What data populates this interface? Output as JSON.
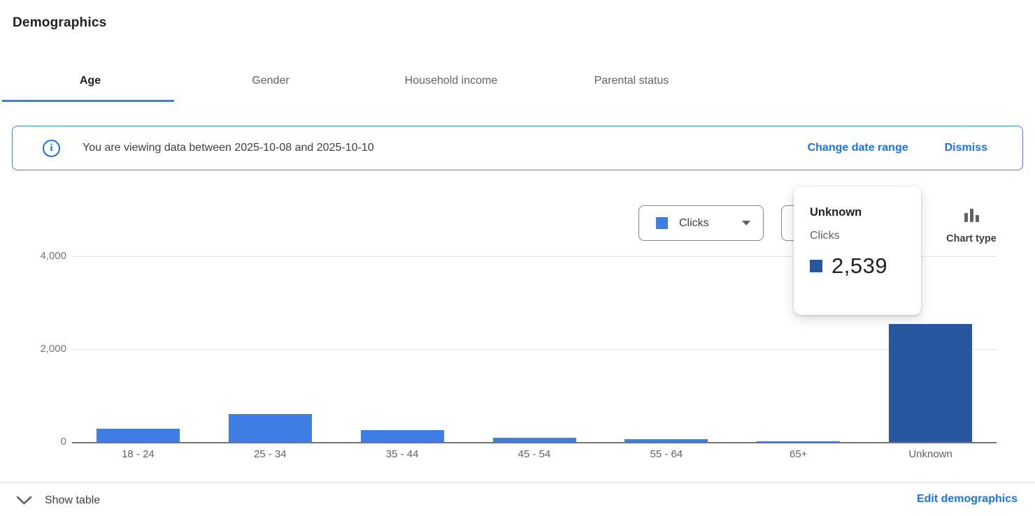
{
  "page": {
    "title": "Demographics"
  },
  "tabs": [
    {
      "label": "Age",
      "active": true
    },
    {
      "label": "Gender",
      "active": false
    },
    {
      "label": "Household income",
      "active": false
    },
    {
      "label": "Parental status",
      "active": false
    }
  ],
  "banner": {
    "message": "You are viewing data between 2025-10-08 and 2025-10-10",
    "change_link": "Change date range",
    "dismiss_link": "Dismiss"
  },
  "chart_controls": {
    "metric_selector": {
      "label": "Clicks",
      "swatch_color": "#3e7de4"
    },
    "chart_type_label": "Chart type"
  },
  "tooltip": {
    "title": "Unknown",
    "metric": "Clicks",
    "value": "2,539",
    "swatch_color": "#27579e"
  },
  "chart_data": {
    "type": "bar",
    "title": "",
    "xlabel": "",
    "ylabel": "",
    "categories": [
      "18 - 24",
      "25 - 34",
      "35 - 44",
      "45 - 54",
      "55 - 64",
      "65+",
      "Unknown"
    ],
    "series": [
      {
        "name": "Clicks",
        "values": [
          280,
          600,
          250,
          90,
          55,
          20,
          2539
        ]
      }
    ],
    "ylim": [
      0,
      4000
    ],
    "ytick_values": [
      0,
      2000,
      4000
    ],
    "ytick_labels": [
      "0",
      "2,000",
      "4,000"
    ],
    "grid": true,
    "legend_position": "none",
    "bar_color": "#3e7de4",
    "highlight_color": "#27579e",
    "highlighted_category": "Unknown"
  },
  "footer": {
    "show_table_label": "Show table",
    "edit_link": "Edit demographics"
  },
  "icons": {
    "info": "info-icon",
    "metric_dropdown": "chevron-down-icon",
    "chart_type": "bar-chart-icon",
    "show_table": "chevron-down-icon"
  },
  "colors": {
    "accent_blue": "#1a73e8",
    "bar_blue": "#3e7de4",
    "bar_dark_blue": "#27579e",
    "text_dark": "#202124",
    "text_grey": "#5f6368"
  }
}
